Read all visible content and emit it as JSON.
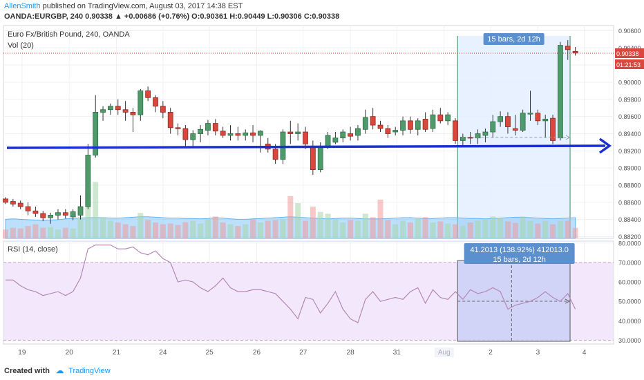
{
  "header": {
    "author": "AllenSmith",
    "published": "published on TradingView.com, August 03, 2017 14:38 EST",
    "ohlc_line": "OANDA:EURGBP, 240  0.90338 ▲ +0.00686 (+0.76%) O:0.90361 H:0.90449 L:0.90306 C:0.90338"
  },
  "footer": {
    "created_with": "Created with",
    "brand": "TradingView"
  },
  "chart_data": [
    {
      "type": "candlestick",
      "title": "Euro Fx/British Pound, 240, OANDA",
      "volume_label": "Vol (20)",
      "y_ticks": [
        "0.90600",
        "0.90400",
        "0.90200",
        "0.90000",
        "0.89800",
        "0.89600",
        "0.89400",
        "0.89200",
        "0.89000",
        "0.88800",
        "0.88600",
        "0.88400",
        "0.88200"
      ],
      "ylim": [
        0.8818,
        0.9066
      ],
      "last_price_label": "0.90338",
      "last_price": 0.90338,
      "countdown_label": "01:21:53",
      "x_tick_labels": [
        "19",
        "20",
        "21",
        "24",
        "25",
        "26",
        "27",
        "28",
        "31",
        "Aug",
        "2",
        "3",
        "4"
      ],
      "measure_label": "15 bars, 2d 12h",
      "candles": [
        {
          "o": 0.8864,
          "h": 0.8866,
          "l": 0.8858,
          "c": 0.886
        },
        {
          "o": 0.8861,
          "h": 0.8864,
          "l": 0.8855,
          "c": 0.8858
        },
        {
          "o": 0.8859,
          "h": 0.8862,
          "l": 0.8852,
          "c": 0.8855
        },
        {
          "o": 0.8855,
          "h": 0.886,
          "l": 0.8845,
          "c": 0.885
        },
        {
          "o": 0.885,
          "h": 0.8855,
          "l": 0.8843,
          "c": 0.8847
        },
        {
          "o": 0.8847,
          "h": 0.885,
          "l": 0.8838,
          "c": 0.8842
        },
        {
          "o": 0.8842,
          "h": 0.8848,
          "l": 0.8835,
          "c": 0.8845
        },
        {
          "o": 0.8845,
          "h": 0.8852,
          "l": 0.884,
          "c": 0.8848
        },
        {
          "o": 0.8848,
          "h": 0.8852,
          "l": 0.8841,
          "c": 0.8845
        },
        {
          "o": 0.8843,
          "h": 0.8852,
          "l": 0.8839,
          "c": 0.8849
        },
        {
          "o": 0.8845,
          "h": 0.8868,
          "l": 0.884,
          "c": 0.8855
        },
        {
          "o": 0.8855,
          "h": 0.8928,
          "l": 0.8852,
          "c": 0.8915
        },
        {
          "o": 0.8915,
          "h": 0.8985,
          "l": 0.8912,
          "c": 0.8965
        },
        {
          "o": 0.8965,
          "h": 0.8972,
          "l": 0.8955,
          "c": 0.8968
        },
        {
          "o": 0.8968,
          "h": 0.8975,
          "l": 0.8962,
          "c": 0.8972
        },
        {
          "o": 0.8972,
          "h": 0.898,
          "l": 0.8962,
          "c": 0.8968
        },
        {
          "o": 0.8968,
          "h": 0.8978,
          "l": 0.8955,
          "c": 0.8965
        },
        {
          "o": 0.8965,
          "h": 0.897,
          "l": 0.8942,
          "c": 0.8962
        },
        {
          "o": 0.8962,
          "h": 0.8992,
          "l": 0.8955,
          "c": 0.899
        },
        {
          "o": 0.899,
          "h": 0.8995,
          "l": 0.8978,
          "c": 0.8982
        },
        {
          "o": 0.8982,
          "h": 0.8985,
          "l": 0.8965,
          "c": 0.8972
        },
        {
          "o": 0.8972,
          "h": 0.8978,
          "l": 0.8958,
          "c": 0.8965
        },
        {
          "o": 0.8965,
          "h": 0.897,
          "l": 0.894,
          "c": 0.8947
        },
        {
          "o": 0.8947,
          "h": 0.8952,
          "l": 0.8938,
          "c": 0.8946
        },
        {
          "o": 0.8946,
          "h": 0.895,
          "l": 0.8925,
          "c": 0.8933
        },
        {
          "o": 0.8933,
          "h": 0.8944,
          "l": 0.8925,
          "c": 0.894
        },
        {
          "o": 0.894,
          "h": 0.895,
          "l": 0.893,
          "c": 0.8945
        },
        {
          "o": 0.8944,
          "h": 0.8956,
          "l": 0.8938,
          "c": 0.8952
        },
        {
          "o": 0.8952,
          "h": 0.8957,
          "l": 0.8938,
          "c": 0.8943
        },
        {
          "o": 0.8943,
          "h": 0.8948,
          "l": 0.8935,
          "c": 0.8938
        },
        {
          "o": 0.8938,
          "h": 0.895,
          "l": 0.8932,
          "c": 0.894
        },
        {
          "o": 0.894,
          "h": 0.8948,
          "l": 0.8932,
          "c": 0.8938
        },
        {
          "o": 0.8938,
          "h": 0.8945,
          "l": 0.8932,
          "c": 0.8941
        },
        {
          "o": 0.8941,
          "h": 0.895,
          "l": 0.893,
          "c": 0.8938
        },
        {
          "o": 0.8938,
          "h": 0.8944,
          "l": 0.8918,
          "c": 0.8943
        },
        {
          "o": 0.8928,
          "h": 0.8935,
          "l": 0.8918,
          "c": 0.8922
        },
        {
          "o": 0.8922,
          "h": 0.8928,
          "l": 0.8905,
          "c": 0.891
        },
        {
          "o": 0.891,
          "h": 0.8945,
          "l": 0.8905,
          "c": 0.8942
        },
        {
          "o": 0.8942,
          "h": 0.8955,
          "l": 0.8928,
          "c": 0.894
        },
        {
          "o": 0.894,
          "h": 0.8952,
          "l": 0.8932,
          "c": 0.8942
        },
        {
          "o": 0.8942,
          "h": 0.8948,
          "l": 0.8922,
          "c": 0.8928
        },
        {
          "o": 0.8925,
          "h": 0.8932,
          "l": 0.8892,
          "c": 0.8898
        },
        {
          "o": 0.8898,
          "h": 0.893,
          "l": 0.8895,
          "c": 0.8925
        },
        {
          "o": 0.8925,
          "h": 0.8942,
          "l": 0.8922,
          "c": 0.8938
        },
        {
          "o": 0.893,
          "h": 0.8942,
          "l": 0.8928,
          "c": 0.8935
        },
        {
          "o": 0.8935,
          "h": 0.8945,
          "l": 0.893,
          "c": 0.8942
        },
        {
          "o": 0.894,
          "h": 0.8948,
          "l": 0.8932,
          "c": 0.8937
        },
        {
          "o": 0.8938,
          "h": 0.895,
          "l": 0.8932,
          "c": 0.8946
        },
        {
          "o": 0.8945,
          "h": 0.8968,
          "l": 0.894,
          "c": 0.8959
        },
        {
          "o": 0.896,
          "h": 0.897,
          "l": 0.8945,
          "c": 0.895
        },
        {
          "o": 0.895,
          "h": 0.8955,
          "l": 0.8942,
          "c": 0.8946
        },
        {
          "o": 0.8946,
          "h": 0.895,
          "l": 0.8935,
          "c": 0.894
        },
        {
          "o": 0.8942,
          "h": 0.8948,
          "l": 0.8938,
          "c": 0.8944
        },
        {
          "o": 0.8944,
          "h": 0.896,
          "l": 0.8938,
          "c": 0.8955
        },
        {
          "o": 0.8955,
          "h": 0.896,
          "l": 0.894,
          "c": 0.8945
        },
        {
          "o": 0.8945,
          "h": 0.8958,
          "l": 0.8938,
          "c": 0.8955
        },
        {
          "o": 0.8957,
          "h": 0.8965,
          "l": 0.8942,
          "c": 0.8945
        },
        {
          "o": 0.8946,
          "h": 0.8968,
          "l": 0.8942,
          "c": 0.8962
        },
        {
          "o": 0.8962,
          "h": 0.897,
          "l": 0.8952,
          "c": 0.8955
        },
        {
          "o": 0.8955,
          "h": 0.8965,
          "l": 0.895,
          "c": 0.8962
        },
        {
          "o": 0.8955,
          "h": 0.8958,
          "l": 0.8928,
          "c": 0.8932
        },
        {
          "o": 0.8932,
          "h": 0.894,
          "l": 0.8925,
          "c": 0.8936
        },
        {
          "o": 0.8936,
          "h": 0.8942,
          "l": 0.8928,
          "c": 0.8935
        },
        {
          "o": 0.8935,
          "h": 0.8945,
          "l": 0.8928,
          "c": 0.894
        },
        {
          "o": 0.8938,
          "h": 0.8946,
          "l": 0.893,
          "c": 0.8942
        },
        {
          "o": 0.8942,
          "h": 0.8962,
          "l": 0.8935,
          "c": 0.8954
        },
        {
          "o": 0.8954,
          "h": 0.8966,
          "l": 0.8948,
          "c": 0.896
        },
        {
          "o": 0.896,
          "h": 0.8965,
          "l": 0.894,
          "c": 0.8948
        },
        {
          "o": 0.8946,
          "h": 0.8962,
          "l": 0.8938,
          "c": 0.8944
        },
        {
          "o": 0.8944,
          "h": 0.8968,
          "l": 0.8942,
          "c": 0.8964
        },
        {
          "o": 0.8964,
          "h": 0.899,
          "l": 0.8955,
          "c": 0.8964
        },
        {
          "o": 0.8964,
          "h": 0.8968,
          "l": 0.895,
          "c": 0.8955
        },
        {
          "o": 0.8955,
          "h": 0.8962,
          "l": 0.8935,
          "c": 0.8957
        },
        {
          "o": 0.8958,
          "h": 0.8962,
          "l": 0.8928,
          "c": 0.8932
        },
        {
          "o": 0.8935,
          "h": 0.9047,
          "l": 0.8932,
          "c": 0.9043
        },
        {
          "o": 0.9042,
          "h": 0.9049,
          "l": 0.9026,
          "c": 0.9038
        },
        {
          "o": 0.9036,
          "h": 0.9041,
          "l": 0.9031,
          "c": 0.9034
        }
      ],
      "volume_ma": [
        0.46,
        0.47,
        0.46,
        0.45,
        0.44,
        0.43,
        0.44,
        0.45,
        0.47,
        0.48,
        0.49,
        0.5,
        0.5,
        0.5,
        0.49,
        0.49,
        0.5,
        0.51,
        0.52,
        0.52,
        0.51,
        0.5,
        0.49,
        0.49,
        0.48,
        0.48,
        0.47,
        0.48,
        0.5,
        0.49,
        0.47,
        0.46,
        0.46,
        0.47,
        0.48,
        0.49,
        0.5,
        0.51,
        0.52,
        0.51,
        0.5,
        0.49,
        0.48,
        0.47,
        0.48,
        0.49,
        0.49,
        0.48,
        0.47,
        0.47,
        0.47,
        0.48,
        0.49,
        0.5,
        0.5,
        0.49,
        0.48,
        0.48,
        0.49,
        0.5,
        0.5,
        0.49,
        0.48,
        0.48,
        0.47,
        0.48,
        0.49,
        0.5,
        0.51,
        0.51,
        0.5,
        0.49,
        0.48,
        0.47,
        0.48,
        0.49,
        0.5
      ],
      "volume": [
        0.25,
        0.3,
        0.28,
        0.35,
        0.4,
        0.3,
        0.32,
        0.25,
        0.3,
        0.28,
        0.6,
        1.4,
        1.6,
        0.6,
        0.5,
        0.45,
        0.4,
        0.35,
        0.72,
        0.52,
        0.45,
        0.4,
        0.42,
        0.38,
        0.46,
        0.5,
        0.42,
        0.55,
        0.62,
        0.45,
        0.4,
        0.35,
        0.4,
        0.55,
        0.45,
        0.5,
        0.52,
        0.55,
        1.2,
        1.0,
        0.5,
        0.9,
        0.75,
        0.7,
        0.55,
        0.45,
        0.52,
        0.5,
        0.7,
        0.6,
        1.1,
        0.52,
        0.4,
        0.5,
        0.45,
        0.55,
        0.6,
        0.45,
        0.48,
        0.42,
        0.4,
        0.35,
        0.45,
        0.5,
        0.55,
        0.62,
        0.58,
        0.48,
        0.44,
        0.62,
        0.5,
        0.42,
        0.5,
        0.4,
        0.5,
        0.5,
        0.3
      ]
    },
    {
      "type": "line",
      "title": "RSI (14, close)",
      "y_ticks": [
        "80.0000",
        "70.0000",
        "60.0000",
        "50.0000",
        "40.0000",
        "30.0000"
      ],
      "ylim": [
        28,
        81
      ],
      "guide_lines": [
        70,
        30
      ],
      "measure_label_line1": "41.2013 (138.92%) 412013.0",
      "measure_label_line2": "15 bars, 2d 12h",
      "values": [
        61,
        61,
        58,
        56,
        55,
        53,
        54,
        55,
        53,
        55,
        62,
        77,
        79,
        79,
        79,
        77,
        77,
        78,
        75,
        74,
        76,
        72,
        70,
        60,
        61,
        60,
        57,
        55,
        58,
        62,
        57,
        55,
        55,
        56,
        56,
        55,
        54,
        50,
        46,
        41,
        52,
        51,
        44,
        49,
        55,
        46,
        41,
        39,
        51,
        55,
        50,
        51,
        52,
        51,
        55,
        57,
        49,
        56,
        52,
        51,
        55,
        51,
        56,
        54,
        55,
        57,
        55,
        46,
        48,
        49,
        50,
        52,
        55,
        52,
        50,
        54,
        46
      ]
    }
  ]
}
